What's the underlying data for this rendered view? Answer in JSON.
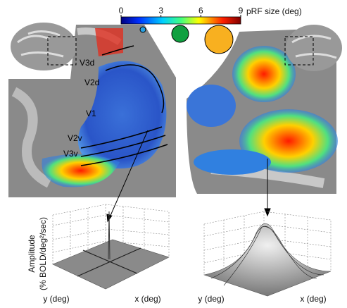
{
  "colorbar": {
    "label": "pRF size (deg)",
    "lim": [
      0,
      9
    ],
    "ticks": [
      0,
      3,
      6,
      9
    ]
  },
  "areas": [
    "V3d",
    "V2d",
    "V1",
    "V2v",
    "V3v"
  ],
  "plots": [
    {
      "zlabel": "Amplitude",
      "zunit": "(% BOLD/deg²/sec)",
      "ylabel": "y (deg)",
      "xlabel": "x (deg)"
    },
    {
      "ylabel": "y (deg)",
      "xlabel": "x (deg)"
    }
  ]
}
